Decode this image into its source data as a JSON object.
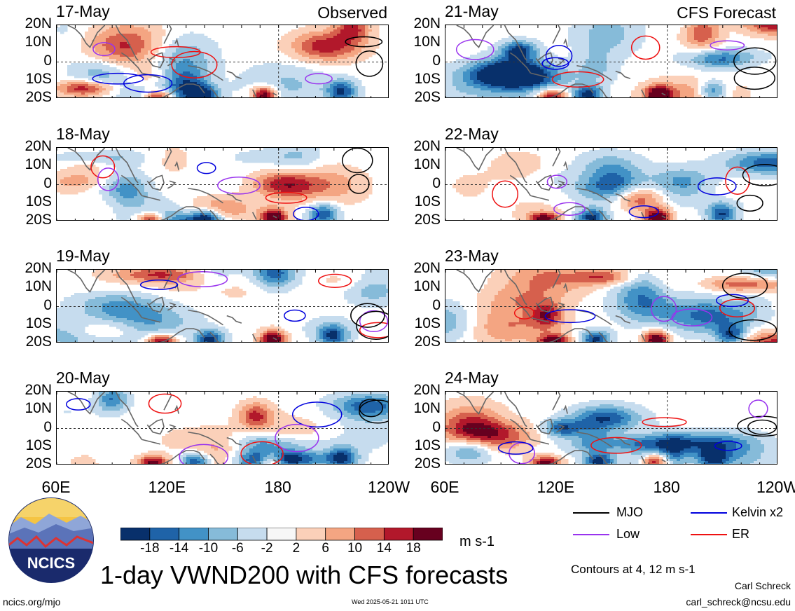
{
  "panel_labels": {
    "observed": "Observed",
    "forecast": "CFS Forecast"
  },
  "chart_data": {
    "type": "heatmap",
    "title": "1-day VWND200 with CFS forecasts",
    "units": "m s-1",
    "x_ticks": [
      "60E",
      "120E",
      "180",
      "120W"
    ],
    "y_ticks": [
      "20N",
      "10N",
      "0",
      "10S",
      "20S"
    ],
    "ylim": [
      -20,
      20
    ],
    "grid": "dashed lines at equator and 180",
    "panels": [
      {
        "date": "17-May",
        "kind": "Observed"
      },
      {
        "date": "18-May",
        "kind": "Observed"
      },
      {
        "date": "19-May",
        "kind": "Observed"
      },
      {
        "date": "20-May",
        "kind": "Observed"
      },
      {
        "date": "21-May",
        "kind": "CFS Forecast"
      },
      {
        "date": "22-May",
        "kind": "CFS Forecast"
      },
      {
        "date": "23-May",
        "kind": "CFS Forecast"
      },
      {
        "date": "24-May",
        "kind": "CFS Forecast"
      }
    ],
    "colorbar": {
      "labels": [
        "-18",
        "-14",
        "-10",
        "-6",
        "-2",
        "2",
        "6",
        "10",
        "14",
        "18"
      ],
      "colors": [
        "#08306b",
        "#1f63a8",
        "#4292c6",
        "#86bbd9",
        "#c6dcee",
        "#f7f7f7",
        "#fbd0b9",
        "#f4a582",
        "#d6604d",
        "#b2182b",
        "#67001f"
      ]
    },
    "legend": [
      {
        "name": "MJO",
        "color": "#000000"
      },
      {
        "name": "Kelvin x2",
        "color": "#0000dd"
      },
      {
        "name": "Low",
        "color": "#9933ee"
      },
      {
        "name": "ER",
        "color": "#ee1111"
      }
    ],
    "contour_note": "Contours at 4, 12 m s-1"
  },
  "footer": {
    "logo_text": "NCICS",
    "url": "ncics.org/mjo",
    "timestamp": "Wed 2025-05-21 1011 UTC",
    "author": "Carl Schreck",
    "email": "carl_schreck@ncsu.edu"
  }
}
